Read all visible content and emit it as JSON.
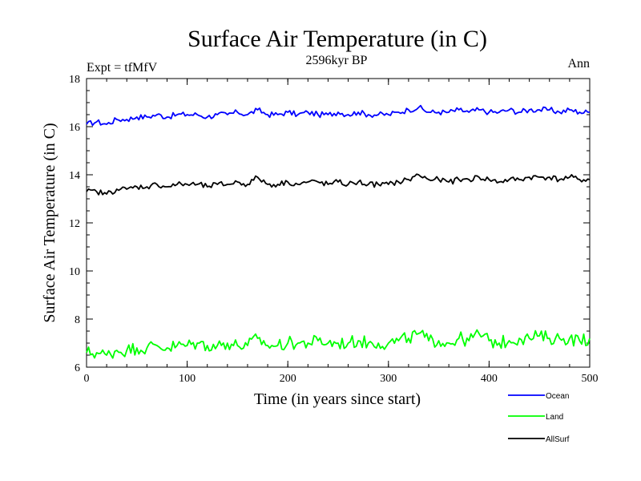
{
  "chart_data": {
    "type": "line",
    "title": "Surface Air Temperature (in C)",
    "subtitle": "2596kyr BP",
    "experiment_label": "Expt = tfMfV",
    "season_label": "Ann",
    "xlabel": "Time (in years since start)",
    "ylabel": "Surface Air Temperature (in C)",
    "xlim": [
      0,
      500
    ],
    "ylim": [
      6,
      18
    ],
    "xticks": [
      0,
      100,
      200,
      300,
      400,
      500
    ],
    "yticks": [
      6,
      8,
      10,
      12,
      14,
      16,
      18
    ],
    "series": [
      {
        "name": "Ocean",
        "color": "#0000ff",
        "x": [
          0,
          10,
          20,
          30,
          40,
          50,
          60,
          70,
          80,
          90,
          100,
          110,
          120,
          130,
          140,
          150,
          160,
          170,
          180,
          190,
          200,
          210,
          220,
          230,
          240,
          250,
          260,
          270,
          280,
          290,
          300,
          310,
          320,
          330,
          340,
          350,
          360,
          370,
          380,
          390,
          400,
          410,
          420,
          430,
          440,
          450,
          460,
          470,
          480,
          490,
          500
        ],
        "values": [
          16.1,
          16.2,
          16.1,
          16.3,
          16.3,
          16.4,
          16.4,
          16.5,
          16.4,
          16.5,
          16.5,
          16.5,
          16.4,
          16.5,
          16.5,
          16.6,
          16.5,
          16.7,
          16.5,
          16.5,
          16.6,
          16.5,
          16.6,
          16.5,
          16.5,
          16.6,
          16.5,
          16.6,
          16.5,
          16.5,
          16.5,
          16.6,
          16.7,
          16.8,
          16.6,
          16.6,
          16.6,
          16.7,
          16.6,
          16.7,
          16.6,
          16.6,
          16.7,
          16.6,
          16.7,
          16.7,
          16.7,
          16.6,
          16.7,
          16.6,
          16.6
        ]
      },
      {
        "name": "Land",
        "color": "#00ff00",
        "x": [
          0,
          10,
          20,
          30,
          40,
          50,
          60,
          70,
          80,
          90,
          100,
          110,
          120,
          130,
          140,
          150,
          160,
          170,
          180,
          190,
          200,
          210,
          220,
          230,
          240,
          250,
          260,
          270,
          280,
          290,
          300,
          310,
          320,
          330,
          340,
          350,
          360,
          370,
          380,
          390,
          400,
          410,
          420,
          430,
          440,
          450,
          460,
          470,
          480,
          490,
          500
        ],
        "values": [
          6.6,
          6.6,
          6.5,
          6.7,
          6.7,
          6.8,
          6.8,
          6.9,
          6.8,
          6.9,
          6.9,
          7.0,
          6.9,
          6.9,
          7.0,
          6.9,
          6.9,
          7.2,
          6.9,
          6.9,
          7.0,
          7.0,
          7.0,
          7.1,
          7.0,
          7.0,
          7.0,
          7.1,
          7.0,
          7.0,
          7.0,
          7.1,
          7.2,
          7.4,
          7.1,
          7.1,
          7.0,
          7.2,
          7.1,
          7.4,
          7.1,
          7.0,
          7.1,
          7.2,
          7.2,
          7.3,
          7.2,
          7.2,
          7.2,
          7.1,
          7.2
        ]
      },
      {
        "name": "AllSurf",
        "color": "#000000",
        "x": [
          0,
          10,
          20,
          30,
          40,
          50,
          60,
          70,
          80,
          90,
          100,
          110,
          120,
          130,
          140,
          150,
          160,
          170,
          180,
          190,
          200,
          210,
          220,
          230,
          240,
          250,
          260,
          270,
          280,
          290,
          300,
          310,
          320,
          330,
          340,
          350,
          360,
          370,
          380,
          390,
          400,
          410,
          420,
          430,
          440,
          450,
          460,
          470,
          480,
          490,
          500
        ],
        "values": [
          13.3,
          13.3,
          13.2,
          13.4,
          13.4,
          13.5,
          13.5,
          13.6,
          13.5,
          13.6,
          13.6,
          13.6,
          13.5,
          13.6,
          13.6,
          13.7,
          13.6,
          13.9,
          13.6,
          13.6,
          13.7,
          13.6,
          13.7,
          13.7,
          13.6,
          13.7,
          13.6,
          13.7,
          13.6,
          13.6,
          13.6,
          13.7,
          13.8,
          14.0,
          13.8,
          13.8,
          13.7,
          13.8,
          13.8,
          13.9,
          13.8,
          13.7,
          13.8,
          13.8,
          13.9,
          13.9,
          13.9,
          13.8,
          13.9,
          13.8,
          13.8
        ]
      }
    ],
    "legend_position": "bottom-right"
  }
}
